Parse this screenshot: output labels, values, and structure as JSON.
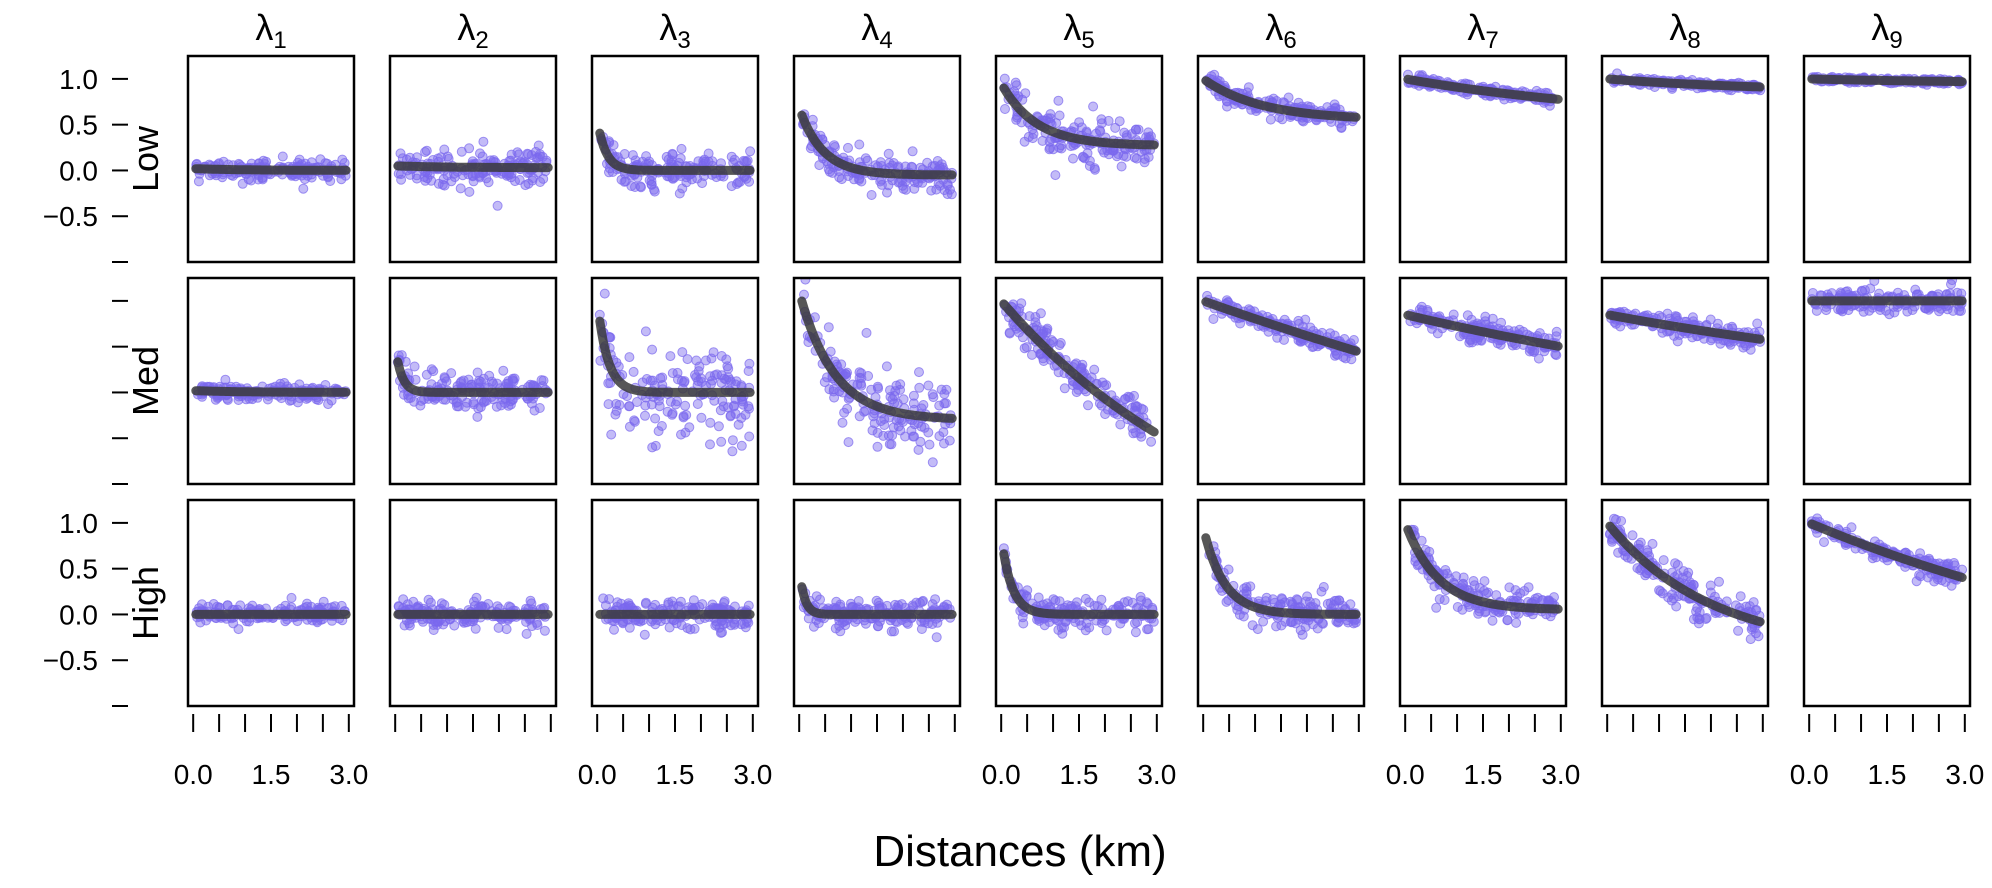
{
  "chart_data": {
    "type": "scatter",
    "title": "",
    "xlabel": "Distances (km)",
    "ylabel": "",
    "columns": [
      {
        "base": "λ",
        "sub": "1"
      },
      {
        "base": "λ",
        "sub": "2"
      },
      {
        "base": "λ",
        "sub": "3"
      },
      {
        "base": "λ",
        "sub": "4"
      },
      {
        "base": "λ",
        "sub": "5"
      },
      {
        "base": "λ",
        "sub": "6"
      },
      {
        "base": "λ",
        "sub": "7"
      },
      {
        "base": "λ",
        "sub": "8"
      },
      {
        "base": "λ",
        "sub": "9"
      }
    ],
    "rows": [
      "Low",
      "Med",
      "High"
    ],
    "xlim": [
      -0.1,
      3.1
    ],
    "ylim": [
      -1.0,
      1.25
    ],
    "x_ticks": [
      0,
      0.5,
      1.0,
      1.5,
      2.0,
      2.5,
      3.0
    ],
    "x_tick_labels": [
      "0.0",
      "1.5",
      "3.0"
    ],
    "x_tick_label_columns": [
      1,
      3,
      5,
      7,
      9
    ],
    "y_ticks": [
      -1.0,
      -0.5,
      0.0,
      0.5,
      1.0
    ],
    "y_tick_labels": [
      "−0.5",
      "0.0",
      "0.5",
      "1.0"
    ],
    "y_tick_label_rows": [
      "Low",
      "High"
    ],
    "grid": false,
    "legend": "none",
    "colors": {
      "points": "#7B68EE",
      "fit_line": "#3a3a3a"
    },
    "panels": {
      "Low": [
        {
          "start": 0.02,
          "end": 0.0,
          "rate": 1.0,
          "scatter": 0.05
        },
        {
          "start": 0.05,
          "end": 0.03,
          "rate": 1.0,
          "scatter": 0.1
        },
        {
          "start": 0.55,
          "end": 0.0,
          "rate": 6.0,
          "scatter": 0.1
        },
        {
          "start": 0.68,
          "end": -0.05,
          "rate": 2.2,
          "scatter": 0.1
        },
        {
          "start": 0.95,
          "end": 0.27,
          "rate": 1.5,
          "scatter": 0.12
        },
        {
          "start": 1.0,
          "end": 0.55,
          "rate": 0.9,
          "scatter": 0.05
        },
        {
          "start": 1.0,
          "end": 0.5,
          "rate": 0.2,
          "scatter": 0.03
        },
        {
          "start": 1.0,
          "end": 0.85,
          "rate": 0.3,
          "scatter": 0.02
        },
        {
          "start": 1.0,
          "end": 0.95,
          "rate": 0.3,
          "scatter": 0.015
        }
      ],
      "Med": [
        {
          "start": 0.02,
          "end": 0.0,
          "rate": 1.0,
          "scatter": 0.04
        },
        {
          "start": 0.5,
          "end": 0.0,
          "rate": 8.0,
          "scatter": 0.1
        },
        {
          "start": 1.0,
          "end": 0.0,
          "rate": 5.0,
          "scatter": 0.25
        },
        {
          "start": 1.1,
          "end": -0.3,
          "rate": 1.5,
          "scatter": 0.2
        },
        {
          "start": 1.0,
          "end": -2.0,
          "rate": 0.22,
          "scatter": 0.12
        },
        {
          "start": 1.0,
          "end": -3.0,
          "rate": 0.05,
          "scatter": 0.06
        },
        {
          "start": 0.85,
          "end": -0.5,
          "rate": 0.1,
          "scatter": 0.06
        },
        {
          "start": 0.85,
          "end": -0.2,
          "rate": 0.1,
          "scatter": 0.06
        },
        {
          "start": 1.0,
          "end": 1.0,
          "rate": 1.0,
          "scatter": 0.07
        }
      ],
      "High": [
        {
          "start": 0.0,
          "end": 0.0,
          "rate": 1.0,
          "scatter": 0.05
        },
        {
          "start": 0.0,
          "end": 0.0,
          "rate": 1.0,
          "scatter": 0.07
        },
        {
          "start": 0.0,
          "end": 0.0,
          "rate": 1.0,
          "scatter": 0.08
        },
        {
          "start": 0.5,
          "end": 0.0,
          "rate": 10.0,
          "scatter": 0.08
        },
        {
          "start": 0.85,
          "end": 0.0,
          "rate": 5.0,
          "scatter": 0.08
        },
        {
          "start": 0.95,
          "end": 0.0,
          "rate": 2.5,
          "scatter": 0.1
        },
        {
          "start": 1.0,
          "end": 0.05,
          "rate": 1.6,
          "scatter": 0.1
        },
        {
          "start": 1.0,
          "end": -0.4,
          "rate": 0.5,
          "scatter": 0.1
        },
        {
          "start": 1.0,
          "end": -1.0,
          "rate": 0.12,
          "scatter": 0.06
        }
      ]
    }
  }
}
